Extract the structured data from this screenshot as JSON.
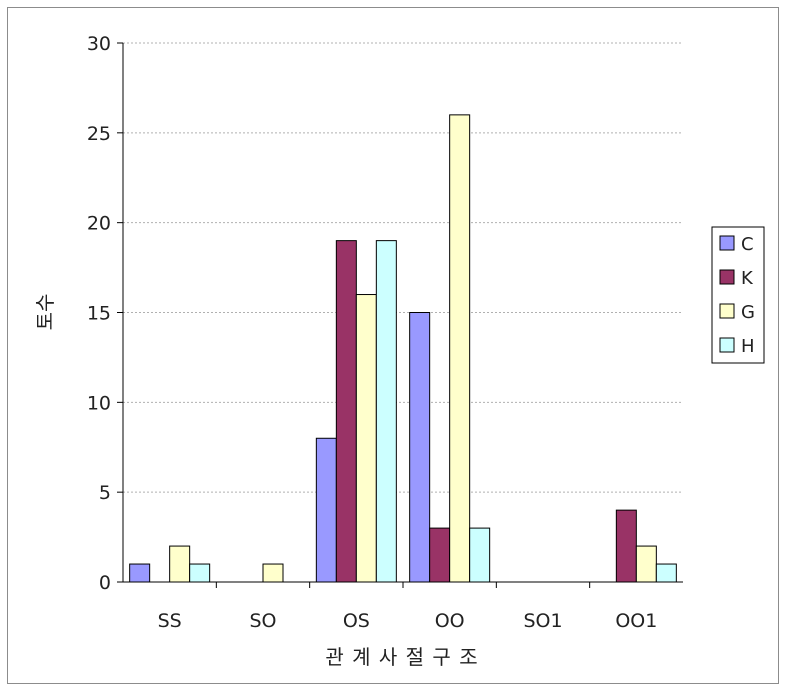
{
  "chart_data": {
    "type": "bar",
    "title": "",
    "xlabel": "관 계 사 절 구 조",
    "ylabel": "토수",
    "categories": [
      "SS",
      "SO",
      "OS",
      "OO",
      "SO1",
      "OO1"
    ],
    "ylim": [
      0,
      30
    ],
    "yticks": [
      0,
      5,
      10,
      15,
      20,
      25,
      30
    ],
    "grid": true,
    "legend_position": "right",
    "series": [
      {
        "name": "C",
        "color": "#9999ff",
        "values": [
          1,
          0,
          8,
          15,
          0,
          0
        ]
      },
      {
        "name": "K",
        "color": "#993366",
        "values": [
          0,
          0,
          19,
          3,
          0,
          4
        ]
      },
      {
        "name": "G",
        "color": "#ffffcc",
        "values": [
          2,
          1,
          16,
          26,
          0,
          2
        ]
      },
      {
        "name": "H",
        "color": "#ccffff",
        "values": [
          1,
          0,
          19,
          3,
          0,
          1
        ]
      }
    ]
  }
}
